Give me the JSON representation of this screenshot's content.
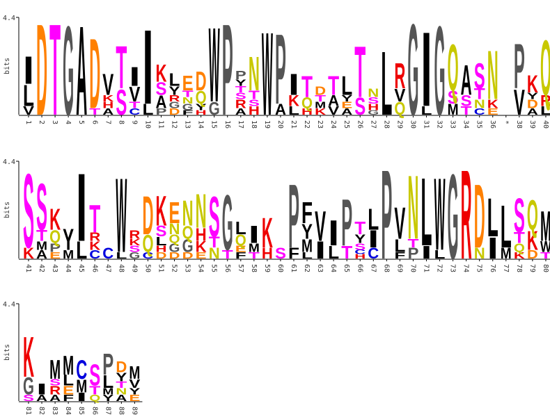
{
  "chart_data": {
    "type": "logo",
    "ylabel": "bits",
    "ylim": [
      0,
      4.4
    ],
    "yticks": [
      4.4
    ],
    "colors": {
      "A": "#000000",
      "I": "#000000",
      "L": "#000000",
      "M": "#000000",
      "V": "#000000",
      "W": "#000000",
      "F": "#000000",
      "Y": "#000000",
      "P": "#555555",
      "G": "#555555",
      "D": "#ff8000",
      "E": "#ff8000",
      "S": "#ff00ff",
      "T": "#ff00ff",
      "K": "#ee0000",
      "R": "#ee0000",
      "H": "#ee0000",
      "Q": "#c8c800",
      "N": "#c8c800",
      "C": "#0000dd"
    },
    "positions": [
      "1",
      "2",
      "3",
      "4",
      "5",
      "6",
      "7",
      "8",
      "9",
      "10",
      "11",
      "12",
      "13",
      "14",
      "15",
      "16",
      "17",
      "18",
      "19",
      "20",
      "21",
      "22",
      "23",
      "24",
      "25",
      "26",
      "27",
      "28",
      "29",
      "30",
      "31",
      "32",
      "33",
      "34",
      "35",
      "36",
      "*",
      "38",
      "39",
      "40",
      "41",
      "42",
      "43",
      "44",
      "45",
      "46",
      "47",
      "48",
      "49",
      "50",
      "51",
      "52",
      "53",
      "54",
      "55",
      "56",
      "57",
      "58",
      "59",
      "60",
      "61",
      "62",
      "63",
      "64",
      "65",
      "66",
      "67",
      "68",
      "69",
      "70",
      "71",
      "72",
      "73",
      "74",
      "75",
      "76",
      "77",
      "78",
      "79",
      "80",
      "81",
      "82",
      "83",
      "84",
      "85",
      "86",
      "87",
      "88",
      "89"
    ],
    "stacks": [
      [
        [
          "V",
          0.4
        ],
        [
          "L",
          1.0
        ],
        [
          "I",
          1.3
        ]
      ],
      [
        [
          "D",
          4.3
        ]
      ],
      [
        [
          "T",
          4.3
        ]
      ],
      [
        [
          "G",
          4.2
        ]
      ],
      [
        [
          "A",
          4.2
        ]
      ],
      [
        [
          "T",
          0.3
        ],
        [
          "D",
          3.3
        ]
      ],
      [
        [
          "A",
          0.3
        ],
        [
          "H",
          0.3
        ],
        [
          "K",
          0.3
        ],
        [
          "V",
          1.0
        ]
      ],
      [
        [
          "S",
          1.2
        ],
        [
          "T",
          2.0
        ]
      ],
      [
        [
          "C",
          0.3
        ],
        [
          "T",
          0.3
        ],
        [
          "V",
          0.7
        ],
        [
          "I",
          0.9
        ]
      ],
      [
        [
          "L",
          0.5
        ],
        [
          "I",
          3.5
        ]
      ],
      [
        [
          "P",
          0.3
        ],
        [
          "A",
          0.6
        ],
        [
          "S",
          0.6
        ],
        [
          "K",
          0.8
        ]
      ],
      [
        [
          "D",
          0.3
        ],
        [
          "G",
          0.3
        ],
        [
          "R",
          0.3
        ],
        [
          "Y",
          0.4
        ],
        [
          "L",
          0.6
        ]
      ],
      [
        [
          "F",
          0.2
        ],
        [
          "G",
          0.3
        ],
        [
          "N",
          0.3
        ],
        [
          "T",
          0.3
        ],
        [
          "E",
          0.7
        ]
      ],
      [
        [
          "H",
          0.2
        ],
        [
          "Y",
          0.3
        ],
        [
          "Q",
          0.6
        ],
        [
          "D",
          0.9
        ]
      ],
      [
        [
          "G",
          0.6
        ],
        [
          "W",
          3.5
        ]
      ],
      [
        [
          "P",
          4.3
        ]
      ],
      [
        [
          "A",
          0.3
        ],
        [
          "R",
          0.4
        ],
        [
          "S",
          0.3
        ],
        [
          "T",
          0.3
        ],
        [
          "Y",
          0.3
        ],
        [
          "P",
          0.4
        ]
      ],
      [
        [
          "H",
          0.4
        ],
        [
          "S",
          0.3
        ],
        [
          "T",
          0.4
        ],
        [
          "N",
          1.6
        ]
      ],
      [
        [
          "W",
          3.9
        ]
      ],
      [
        [
          "A",
          0.5
        ],
        [
          "P",
          3.3
        ]
      ],
      [
        [
          "L",
          0.4
        ],
        [
          "K",
          0.5
        ],
        [
          "I",
          1.0
        ]
      ],
      [
        [
          "H",
          0.3
        ],
        [
          "Q",
          0.5
        ],
        [
          "T",
          1.0
        ]
      ],
      [
        [
          "K",
          0.3
        ],
        [
          "M",
          0.3
        ],
        [
          "T",
          0.3
        ],
        [
          "D",
          0.4
        ]
      ],
      [
        [
          "V",
          0.4
        ],
        [
          "A",
          0.5
        ],
        [
          "T",
          0.9
        ]
      ],
      [
        [
          "A",
          0.3
        ],
        [
          "E",
          0.3
        ],
        [
          "Y",
          0.3
        ],
        [
          "L",
          0.9
        ]
      ],
      [
        [
          "S",
          0.8
        ],
        [
          "T",
          2.4
        ]
      ],
      [
        [
          "G",
          0.2
        ],
        [
          "H",
          0.3
        ],
        [
          "S",
          0.3
        ],
        [
          "N",
          0.4
        ]
      ],
      [
        [
          "L",
          3.0
        ]
      ],
      [
        [
          "Q",
          0.6
        ],
        [
          "V",
          0.6
        ],
        [
          "R",
          1.2
        ]
      ],
      [
        [
          "G",
          4.3
        ]
      ],
      [
        [
          "L",
          0.4
        ],
        [
          "I",
          3.5
        ]
      ],
      [
        [
          "G",
          4.2
        ]
      ],
      [
        [
          "M",
          0.5
        ],
        [
          "S",
          0.6
        ],
        [
          "Q",
          2.2
        ]
      ],
      [
        [
          "T",
          0.4
        ],
        [
          "S",
          0.5
        ],
        [
          "A",
          1.4
        ]
      ],
      [
        [
          "C",
          0.3
        ],
        [
          "N",
          0.4
        ],
        [
          "T",
          0.5
        ],
        [
          "S",
          1.2
        ]
      ],
      [
        [
          "E",
          0.3
        ],
        [
          "K",
          0.4
        ],
        [
          "N",
          2.3
        ]
      ],
      [],
      [
        [
          "V",
          1.2
        ],
        [
          "P",
          2.1
        ]
      ],
      [
        [
          "A",
          0.3
        ],
        [
          "D",
          0.4
        ],
        [
          "Y",
          0.3
        ],
        [
          "K",
          0.8
        ]
      ],
      [
        [
          "L",
          0.4
        ],
        [
          "R",
          0.5
        ],
        [
          "Q",
          2.6
        ]
      ],
      [
        [
          "K",
          0.5
        ],
        [
          "S",
          3.5
        ]
      ],
      [
        [
          "A",
          0.4
        ],
        [
          "M",
          0.4
        ],
        [
          "T",
          0.5
        ],
        [
          "S",
          2.2
        ]
      ],
      [
        [
          "E",
          0.3
        ],
        [
          "P",
          0.4
        ],
        [
          "Q",
          0.6
        ],
        [
          "K",
          1.0
        ]
      ],
      [
        [
          "M",
          0.4
        ],
        [
          "Y",
          1.0
        ]
      ],
      [
        [
          "L",
          0.8
        ],
        [
          "I",
          3.2
        ]
      ],
      [
        [
          "C",
          0.4
        ],
        [
          "K",
          0.4
        ],
        [
          "R",
          0.4
        ],
        [
          "T",
          1.3
        ]
      ],
      [
        [
          "C",
          0.5
        ]
      ],
      [
        [
          "L",
          0.3
        ],
        [
          "W",
          3.5
        ]
      ],
      [
        [
          "G",
          0.3
        ],
        [
          "S",
          0.3
        ],
        [
          "K",
          0.3
        ],
        [
          "R",
          0.4
        ]
      ],
      [
        [
          "C",
          0.3
        ],
        [
          "Q",
          0.8
        ],
        [
          "D",
          1.8
        ]
      ],
      [
        [
          "D",
          0.3
        ],
        [
          "H",
          0.3
        ],
        [
          "L",
          0.4
        ],
        [
          "S",
          0.5
        ],
        [
          "K",
          1.4
        ]
      ],
      [
        [
          "D",
          0.3
        ],
        [
          "G",
          0.4
        ],
        [
          "Q",
          0.4
        ],
        [
          "N",
          0.5
        ],
        [
          "E",
          1.0
        ]
      ],
      [
        [
          "D",
          0.3
        ],
        [
          "G",
          0.6
        ],
        [
          "Q",
          0.6
        ],
        [
          "N",
          1.2
        ]
      ],
      [
        [
          "E",
          0.3
        ],
        [
          "K",
          0.5
        ],
        [
          "H",
          0.6
        ],
        [
          "N",
          1.6
        ]
      ],
      [
        [
          "N",
          0.5
        ],
        [
          "T",
          0.5
        ],
        [
          "S",
          1.9
        ]
      ],
      [
        [
          "T",
          0.4
        ],
        [
          "G",
          2.6
        ]
      ],
      [
        [
          "F",
          0.3
        ],
        [
          "E",
          0.3
        ],
        [
          "Q",
          0.5
        ],
        [
          "L",
          0.6
        ]
      ],
      [
        [
          "T",
          0.3
        ],
        [
          "M",
          0.4
        ],
        [
          "I",
          0.8
        ]
      ],
      [
        [
          "H",
          0.5
        ],
        [
          "K",
          1.4
        ]
      ],
      [
        [
          "S",
          0.5
        ]
      ],
      [
        [
          "F",
          0.5
        ],
        [
          "P",
          3.0
        ]
      ],
      [
        [
          "L",
          0.3
        ],
        [
          "M",
          0.6
        ],
        [
          "Y",
          0.7
        ],
        [
          "F",
          1.0
        ]
      ],
      [
        [
          "I",
          0.8
        ],
        [
          "V",
          1.4
        ]
      ],
      [
        [
          "L",
          0.6
        ],
        [
          "I",
          1.2
        ]
      ],
      [
        [
          "T",
          0.6
        ],
        [
          "P",
          2.2
        ]
      ],
      [
        [
          "H",
          0.2
        ],
        [
          "C",
          0.2
        ],
        [
          "S",
          0.3
        ],
        [
          "Y",
          0.4
        ],
        [
          "T",
          0.6
        ]
      ],
      [
        [
          "C",
          0.5
        ],
        [
          "I",
          0.8
        ],
        [
          "L",
          1.0
        ]
      ],
      [
        [
          "P",
          4.2
        ]
      ],
      [
        [
          "F",
          0.3
        ],
        [
          "L",
          0.6
        ],
        [
          "V",
          1.5
        ]
      ],
      [
        [
          "P",
          0.5
        ],
        [
          "T",
          0.4
        ],
        [
          "N",
          3.0
        ]
      ],
      [
        [
          "I",
          0.6
        ],
        [
          "L",
          3.2
        ]
      ],
      [
        [
          "L",
          0.4
        ],
        [
          "W",
          3.4
        ]
      ],
      [
        [
          "G",
          4.0
        ]
      ],
      [
        [
          "R",
          4.2
        ]
      ],
      [
        [
          "N",
          0.5
        ],
        [
          "D",
          3.0
        ]
      ],
      [
        [
          "I",
          1.0
        ],
        [
          "L",
          1.8
        ]
      ],
      [
        [
          "M",
          0.5
        ],
        [
          "L",
          2.0
        ]
      ],
      [
        [
          "K",
          0.3
        ],
        [
          "Q",
          0.4
        ],
        [
          "T",
          0.5
        ],
        [
          "S",
          1.6
        ]
      ],
      [
        [
          "D",
          0.4
        ],
        [
          "K",
          0.9
        ],
        [
          "Q",
          1.4
        ]
      ],
      [
        [
          "T",
          0.3
        ],
        [
          "W",
          0.5
        ],
        [
          "M",
          1.4
        ]
      ],
      [
        [
          "S",
          0.3
        ],
        [
          "G",
          0.8
        ],
        [
          "K",
          1.9
        ]
      ],
      [
        [
          "A",
          0.3
        ],
        [
          "I",
          0.5
        ]
      ],
      [
        [
          "A",
          0.3
        ],
        [
          "R",
          0.4
        ],
        [
          "S",
          0.3
        ],
        [
          "M",
          0.9
        ]
      ],
      [
        [
          "F",
          0.3
        ],
        [
          "E",
          0.4
        ],
        [
          "L",
          0.5
        ],
        [
          "M",
          0.9
        ]
      ],
      [
        [
          "I",
          0.4
        ],
        [
          "M",
          0.6
        ],
        [
          "C",
          0.9
        ]
      ],
      [
        [
          "Q",
          0.3
        ],
        [
          "T",
          0.4
        ],
        [
          "S",
          1.0
        ]
      ],
      [
        [
          "Y",
          0.3
        ],
        [
          "M",
          0.3
        ],
        [
          "L",
          0.6
        ],
        [
          "P",
          1.0
        ]
      ],
      [
        [
          "A",
          0.3
        ],
        [
          "N",
          0.3
        ],
        [
          "T",
          0.3
        ],
        [
          "Y",
          0.4
        ],
        [
          "D",
          0.5
        ]
      ],
      [
        [
          "E",
          0.3
        ],
        [
          "Y",
          0.3
        ],
        [
          "V",
          0.4
        ],
        [
          "M",
          0.6
        ]
      ]
    ]
  }
}
